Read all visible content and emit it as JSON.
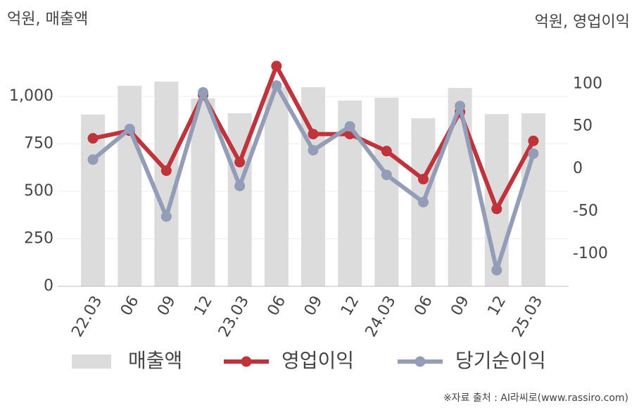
{
  "chart_data": {
    "type": "bar",
    "y_label": "억원, 매출액",
    "y2_label": "억원, 영업이익",
    "source": "※자료 출처 : AI라씨로(www.rassiro.com)",
    "categories": [
      "22.03",
      "06",
      "09",
      "12",
      "23.03",
      "06",
      "09",
      "12",
      "24.03",
      "06",
      "09",
      "12",
      "25.03"
    ],
    "series": [
      {
        "name": "매출액",
        "type": "bar",
        "color": "#dcdcdc",
        "axis": "y",
        "values": [
          904,
          1056,
          1078,
          989,
          911,
          1050,
          1048,
          978,
          993,
          885,
          1044,
          907,
          911
        ]
      },
      {
        "name": "영업이익",
        "type": "line",
        "color": "#c0333a",
        "axis": "y2",
        "values": [
          36,
          45,
          -2,
          87,
          8,
          121,
          41,
          41,
          21,
          -12,
          67,
          -47,
          33
        ]
      },
      {
        "name": "당기순이익",
        "type": "line",
        "color": "#939db8",
        "axis": "y2",
        "values": [
          11,
          47,
          -56,
          90,
          -20,
          98,
          22,
          50,
          -7,
          -39,
          74,
          -119,
          18
        ]
      }
    ],
    "ylim": [
      0,
      1200
    ],
    "yticks": [
      0,
      250,
      500,
      750,
      {
        "value": 1000,
        "label": "1,000"
      }
    ],
    "y2lim": [
      -138,
      130
    ],
    "y2ticks": [
      -100,
      -50,
      0,
      50,
      100
    ],
    "grid": true
  }
}
